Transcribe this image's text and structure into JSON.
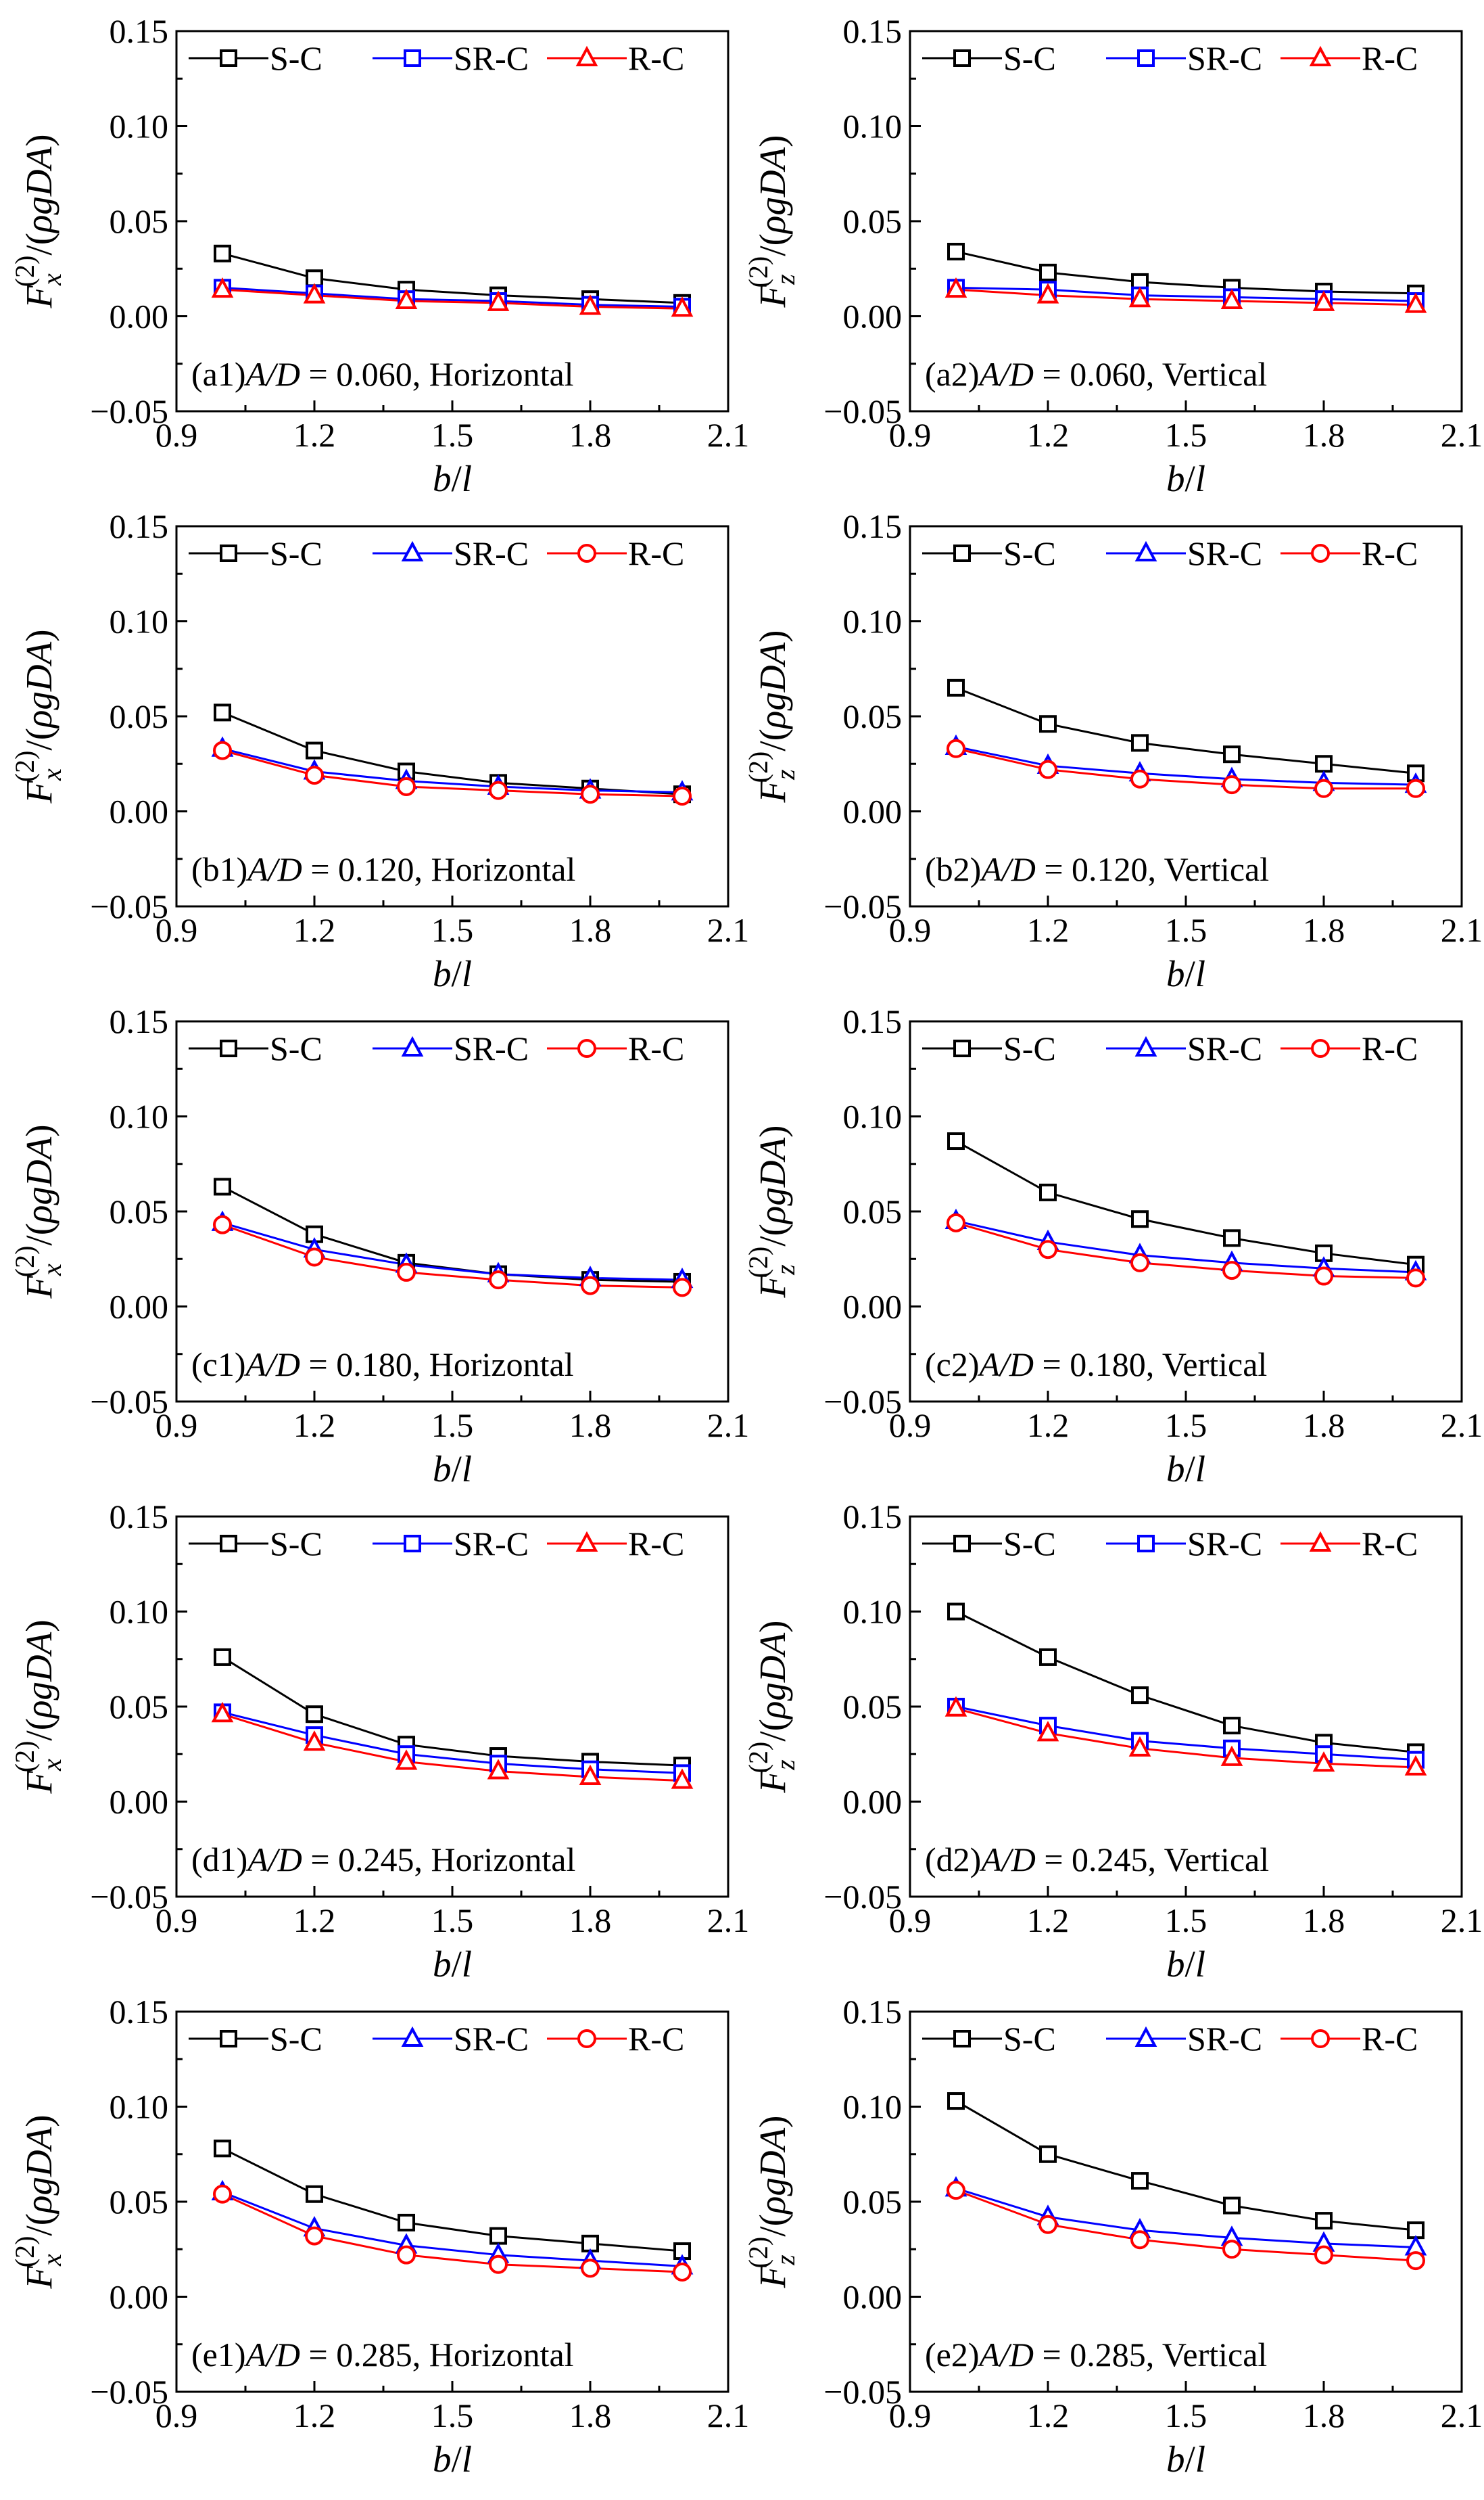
{
  "figure": {
    "x_axis_label": {
      "main": "b",
      "sep": "/",
      "sub": "l"
    },
    "y_label_parts": {
      "F": "F",
      "sup": "(2)",
      "sep": "/(",
      "rho": "ρ",
      "gDA": "gDA",
      "close": ")"
    },
    "x_ticks": [
      0.9,
      1.2,
      1.5,
      1.8,
      2.1
    ],
    "x_tick_labels": [
      "0.9",
      "1.2",
      "1.5",
      "1.8",
      "2.1"
    ],
    "y_ticks": [
      -0.05,
      0.0,
      0.05,
      0.1,
      0.15
    ],
    "y_tick_labels": [
      "−0.05",
      "0.00",
      "0.05",
      "0.10",
      "0.15"
    ],
    "colors": {
      "S-C": "#000000",
      "SR-C": "#0000ff",
      "R-C": "#ff0000"
    }
  },
  "chart_data": [
    {
      "id": "a1",
      "type": "line",
      "component": "x",
      "panel_label": {
        "prefix": "(a1)",
        "var": "A/D",
        "value": " = 0.060, Horizontal"
      },
      "x": [
        1.0,
        1.2,
        1.4,
        1.6,
        1.8,
        2.0
      ],
      "xlim": [
        0.9,
        2.1
      ],
      "ylim": [
        -0.05,
        0.15
      ],
      "series": [
        {
          "name": "S-C",
          "marker": "square",
          "values": [
            0.033,
            0.02,
            0.014,
            0.011,
            0.009,
            0.007
          ]
        },
        {
          "name": "SR-C",
          "marker": "square",
          "values": [
            0.015,
            0.012,
            0.009,
            0.008,
            0.006,
            0.005
          ]
        },
        {
          "name": "R-C",
          "marker": "triangle",
          "values": [
            0.014,
            0.011,
            0.008,
            0.007,
            0.005,
            0.004
          ]
        }
      ]
    },
    {
      "id": "a2",
      "type": "line",
      "component": "z",
      "panel_label": {
        "prefix": "(a2)",
        "var": "A/D",
        "value": " = 0.060, Vertical"
      },
      "x": [
        1.0,
        1.2,
        1.4,
        1.6,
        1.8,
        2.0
      ],
      "xlim": [
        0.9,
        2.1
      ],
      "ylim": [
        -0.05,
        0.15
      ],
      "series": [
        {
          "name": "S-C",
          "marker": "square",
          "values": [
            0.034,
            0.023,
            0.018,
            0.015,
            0.013,
            0.012
          ]
        },
        {
          "name": "SR-C",
          "marker": "square",
          "values": [
            0.015,
            0.014,
            0.011,
            0.01,
            0.009,
            0.008
          ]
        },
        {
          "name": "R-C",
          "marker": "triangle",
          "values": [
            0.014,
            0.011,
            0.009,
            0.008,
            0.007,
            0.006
          ]
        }
      ]
    },
    {
      "id": "b1",
      "type": "line",
      "component": "x",
      "panel_label": {
        "prefix": "(b1)",
        "var": "A/D",
        "value": " = 0.120, Horizontal"
      },
      "x": [
        1.0,
        1.2,
        1.4,
        1.6,
        1.8,
        2.0
      ],
      "xlim": [
        0.9,
        2.1
      ],
      "ylim": [
        -0.05,
        0.15
      ],
      "series": [
        {
          "name": "S-C",
          "marker": "square",
          "values": [
            0.052,
            0.032,
            0.021,
            0.015,
            0.012,
            0.009
          ]
        },
        {
          "name": "SR-C",
          "marker": "triangle",
          "values": [
            0.033,
            0.021,
            0.016,
            0.013,
            0.011,
            0.01
          ]
        },
        {
          "name": "R-C",
          "marker": "circle",
          "values": [
            0.032,
            0.019,
            0.013,
            0.011,
            0.009,
            0.008
          ]
        }
      ]
    },
    {
      "id": "b2",
      "type": "line",
      "component": "z",
      "panel_label": {
        "prefix": "(b2)",
        "var": "A/D",
        "value": " = 0.120, Vertical"
      },
      "x": [
        1.0,
        1.2,
        1.4,
        1.6,
        1.8,
        2.0
      ],
      "xlim": [
        0.9,
        2.1
      ],
      "ylim": [
        -0.05,
        0.15
      ],
      "series": [
        {
          "name": "S-C",
          "marker": "square",
          "values": [
            0.065,
            0.046,
            0.036,
            0.03,
            0.025,
            0.02
          ]
        },
        {
          "name": "SR-C",
          "marker": "triangle",
          "values": [
            0.034,
            0.024,
            0.02,
            0.017,
            0.015,
            0.014
          ]
        },
        {
          "name": "R-C",
          "marker": "circle",
          "values": [
            0.033,
            0.022,
            0.017,
            0.014,
            0.012,
            0.012
          ]
        }
      ]
    },
    {
      "id": "c1",
      "type": "line",
      "component": "x",
      "panel_label": {
        "prefix": "(c1)",
        "var": "A/D",
        "value": " = 0.180, Horizontal"
      },
      "x": [
        1.0,
        1.2,
        1.4,
        1.6,
        1.8,
        2.0
      ],
      "xlim": [
        0.9,
        2.1
      ],
      "ylim": [
        -0.05,
        0.15
      ],
      "series": [
        {
          "name": "S-C",
          "marker": "square",
          "values": [
            0.063,
            0.038,
            0.023,
            0.017,
            0.014,
            0.013
          ]
        },
        {
          "name": "SR-C",
          "marker": "triangle",
          "values": [
            0.044,
            0.03,
            0.022,
            0.017,
            0.015,
            0.014
          ]
        },
        {
          "name": "R-C",
          "marker": "circle",
          "values": [
            0.043,
            0.026,
            0.018,
            0.014,
            0.011,
            0.01
          ]
        }
      ]
    },
    {
      "id": "c2",
      "type": "line",
      "component": "z",
      "panel_label": {
        "prefix": "(c2)",
        "var": "A/D",
        "value": " = 0.180, Vertical"
      },
      "x": [
        1.0,
        1.2,
        1.4,
        1.6,
        1.8,
        2.0
      ],
      "xlim": [
        0.9,
        2.1
      ],
      "ylim": [
        -0.05,
        0.15
      ],
      "series": [
        {
          "name": "S-C",
          "marker": "square",
          "values": [
            0.087,
            0.06,
            0.046,
            0.036,
            0.028,
            0.022
          ]
        },
        {
          "name": "SR-C",
          "marker": "triangle",
          "values": [
            0.045,
            0.034,
            0.027,
            0.023,
            0.02,
            0.018
          ]
        },
        {
          "name": "R-C",
          "marker": "circle",
          "values": [
            0.044,
            0.03,
            0.023,
            0.019,
            0.016,
            0.015
          ]
        }
      ]
    },
    {
      "id": "d1",
      "type": "line",
      "component": "x",
      "panel_label": {
        "prefix": "(d1)",
        "var": "A/D",
        "value": " = 0.245, Horizontal"
      },
      "x": [
        1.0,
        1.2,
        1.4,
        1.6,
        1.8,
        2.0
      ],
      "xlim": [
        0.9,
        2.1
      ],
      "ylim": [
        -0.05,
        0.15
      ],
      "series": [
        {
          "name": "S-C",
          "marker": "square",
          "values": [
            0.076,
            0.046,
            0.03,
            0.024,
            0.021,
            0.019
          ]
        },
        {
          "name": "SR-C",
          "marker": "square",
          "values": [
            0.047,
            0.035,
            0.025,
            0.02,
            0.017,
            0.015
          ]
        },
        {
          "name": "R-C",
          "marker": "triangle",
          "values": [
            0.046,
            0.031,
            0.021,
            0.016,
            0.013,
            0.011
          ]
        }
      ]
    },
    {
      "id": "d2",
      "type": "line",
      "component": "z",
      "panel_label": {
        "prefix": "(d2)",
        "var": "A/D",
        "value": " = 0.245, Vertical"
      },
      "x": [
        1.0,
        1.2,
        1.4,
        1.6,
        1.8,
        2.0
      ],
      "xlim": [
        0.9,
        2.1
      ],
      "ylim": [
        -0.05,
        0.15
      ],
      "series": [
        {
          "name": "S-C",
          "marker": "square",
          "values": [
            0.1,
            0.076,
            0.056,
            0.04,
            0.031,
            0.026
          ]
        },
        {
          "name": "SR-C",
          "marker": "square",
          "values": [
            0.05,
            0.04,
            0.032,
            0.028,
            0.025,
            0.022
          ]
        },
        {
          "name": "R-C",
          "marker": "triangle",
          "values": [
            0.049,
            0.036,
            0.028,
            0.023,
            0.02,
            0.018
          ]
        }
      ]
    },
    {
      "id": "e1",
      "type": "line",
      "component": "x",
      "panel_label": {
        "prefix": "(e1)",
        "var": "A/D",
        "value": " = 0.285, Horizontal"
      },
      "x": [
        1.0,
        1.2,
        1.4,
        1.6,
        1.8,
        2.0
      ],
      "xlim": [
        0.9,
        2.1
      ],
      "ylim": [
        -0.05,
        0.15
      ],
      "series": [
        {
          "name": "S-C",
          "marker": "square",
          "values": [
            0.078,
            0.054,
            0.039,
            0.032,
            0.028,
            0.024
          ]
        },
        {
          "name": "SR-C",
          "marker": "triangle",
          "values": [
            0.055,
            0.036,
            0.027,
            0.022,
            0.019,
            0.016
          ]
        },
        {
          "name": "R-C",
          "marker": "circle",
          "values": [
            0.054,
            0.032,
            0.022,
            0.017,
            0.015,
            0.013
          ]
        }
      ]
    },
    {
      "id": "e2",
      "type": "line",
      "component": "z",
      "panel_label": {
        "prefix": "(e2)",
        "var": "A/D",
        "value": " = 0.285, Vertical"
      },
      "x": [
        1.0,
        1.2,
        1.4,
        1.6,
        1.8,
        2.0
      ],
      "xlim": [
        0.9,
        2.1
      ],
      "ylim": [
        -0.05,
        0.15
      ],
      "series": [
        {
          "name": "S-C",
          "marker": "square",
          "values": [
            0.103,
            0.075,
            0.061,
            0.048,
            0.04,
            0.035
          ]
        },
        {
          "name": "SR-C",
          "marker": "triangle",
          "values": [
            0.057,
            0.042,
            0.035,
            0.031,
            0.028,
            0.026
          ]
        },
        {
          "name": "R-C",
          "marker": "circle",
          "values": [
            0.056,
            0.038,
            0.03,
            0.025,
            0.022,
            0.019
          ]
        }
      ]
    }
  ]
}
